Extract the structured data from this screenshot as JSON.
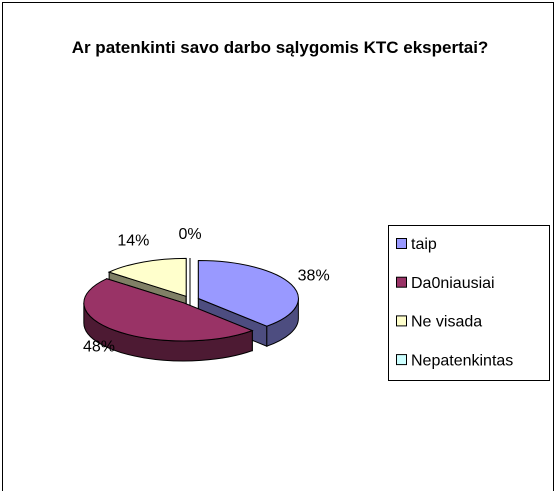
{
  "chart_data": {
    "type": "pie3d",
    "title": "Ar patenkinti savo darbo sąlygomis KTC ekspertai?",
    "categories": [
      "taip",
      "Da0niausiai",
      "Ne visada",
      "Nepatenkintas"
    ],
    "values": [
      38,
      48,
      14,
      0
    ],
    "value_labels": [
      "38%",
      "48%",
      "14%",
      "0%"
    ],
    "colors": [
      "#9999ff",
      "#993366",
      "#ffffcc",
      "#ccffff"
    ],
    "legend": "right"
  }
}
